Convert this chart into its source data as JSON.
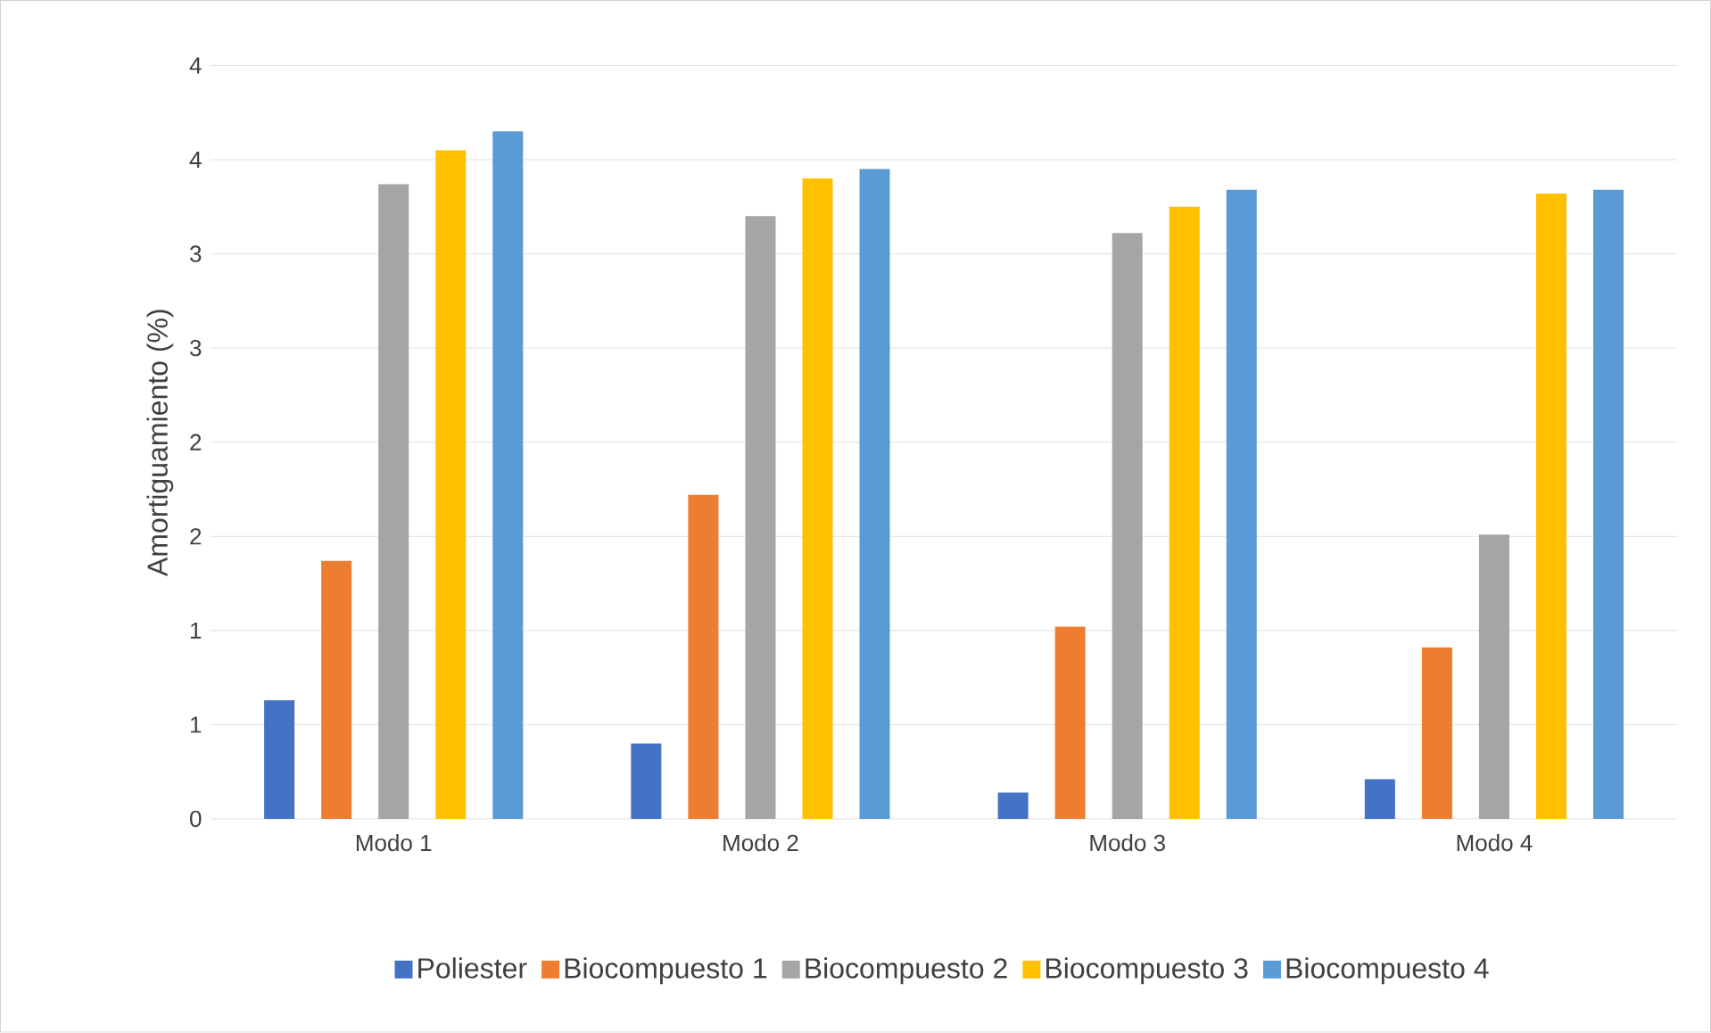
{
  "chart_data": {
    "type": "bar",
    "ylabel": "Amortiguamiento (%)",
    "categories": [
      "Modo 1",
      "Modo 2",
      "Modo 3",
      "Modo 4"
    ],
    "series": [
      {
        "name": "Poliester",
        "color": "#4472c4",
        "values": [
          0.63,
          0.4,
          0.14,
          0.21
        ]
      },
      {
        "name": "Biocompuesto 1",
        "color": "#ed7d31",
        "values": [
          1.37,
          1.72,
          1.02,
          0.91
        ]
      },
      {
        "name": "Biocompuesto 2",
        "color": "#a5a5a5",
        "values": [
          3.37,
          3.2,
          3.11,
          1.51
        ]
      },
      {
        "name": "Biocompuesto 3",
        "color": "#ffc000",
        "values": [
          3.55,
          3.4,
          3.25,
          3.32
        ]
      },
      {
        "name": "Biocompuesto 4",
        "color": "#5b9bd5",
        "values": [
          3.65,
          3.45,
          3.34,
          3.34
        ]
      }
    ],
    "ylim": [
      0,
      4
    ],
    "yticks": [
      0,
      {
        "value": 0.5,
        "label": "1"
      },
      1,
      {
        "value": 1.5,
        "label": "2"
      },
      2,
      {
        "value": 2.5,
        "label": "3"
      },
      3,
      {
        "value": 3.5,
        "label": "4"
      },
      4
    ],
    "grid": "y",
    "legend": "bottom"
  }
}
